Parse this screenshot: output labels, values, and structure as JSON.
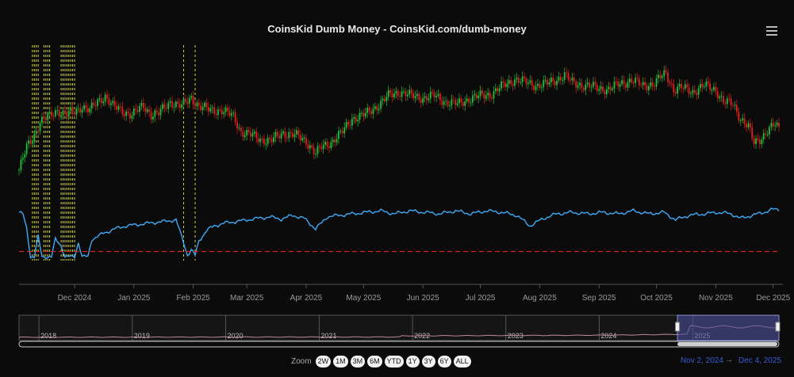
{
  "title": "CoinsKid Dumb Money - CoinsKid.com/dumb-money",
  "menu_icon": "hamburger-menu-icon",
  "zoom": {
    "label": "Zoom",
    "buttons": [
      "2W",
      "1M",
      "3M",
      "6M",
      "YTD",
      "1Y",
      "3Y",
      "6Y",
      "ALL"
    ]
  },
  "range": {
    "from": "Nov 2, 2024",
    "arrow": "→",
    "to": "Dec 4, 2025"
  },
  "colors": {
    "background": "#0b0b0b",
    "candle_up": "#22c03a",
    "candle_down": "#e0201c",
    "indicator_line": "#3fa9f5",
    "threshold_line": "#d0261d",
    "signal_lines": "#d4d43a",
    "navigator_fill": "#4a4f9a"
  },
  "chart_data": {
    "type": "line",
    "title": "CoinsKid Dumb Money - CoinsKid.com/dumb-money",
    "xlabel": "",
    "ylabel": "",
    "x_ticks": [
      "Dec 2024",
      "Jan 2025",
      "Feb 2025",
      "Mar 2025",
      "Apr 2025",
      "May 2025",
      "Jun 2025",
      "Jul 2025",
      "Aug 2025",
      "Sep 2025",
      "Oct 2025",
      "Nov 2025",
      "Dec 2025"
    ],
    "x_range": [
      "2024-11-02",
      "2025-12-04"
    ],
    "y_scale": "relative (0 = panel bottom, 1 = panel top)",
    "series": [
      {
        "kind": "candlestick-close",
        "points": [
          [
            "2024-11-02",
            0.08
          ],
          [
            "2024-11-06",
            0.3
          ],
          [
            "2024-11-10",
            0.42
          ],
          [
            "2024-11-13",
            0.55
          ],
          [
            "2024-11-18",
            0.6
          ],
          [
            "2024-11-22",
            0.66
          ],
          [
            "2024-11-26",
            0.62
          ],
          [
            "2024-12-01",
            0.64
          ],
          [
            "2024-12-05",
            0.7
          ],
          [
            "2024-12-09",
            0.66
          ],
          [
            "2024-12-13",
            0.74
          ],
          [
            "2024-12-17",
            0.8
          ],
          [
            "2024-12-21",
            0.7
          ],
          [
            "2024-12-26",
            0.65
          ],
          [
            "2024-12-31",
            0.62
          ],
          [
            "2025-01-06",
            0.7
          ],
          [
            "2025-01-10",
            0.62
          ],
          [
            "2025-01-14",
            0.63
          ],
          [
            "2025-01-20",
            0.74
          ],
          [
            "2025-01-26",
            0.7
          ],
          [
            "2025-01-31",
            0.78
          ],
          [
            "2025-02-04",
            0.7
          ],
          [
            "2025-02-10",
            0.66
          ],
          [
            "2025-02-16",
            0.66
          ],
          [
            "2025-02-22",
            0.6
          ],
          [
            "2025-02-26",
            0.45
          ],
          [
            "2025-03-03",
            0.42
          ],
          [
            "2025-03-08",
            0.38
          ],
          [
            "2025-03-13",
            0.36
          ],
          [
            "2025-03-20",
            0.44
          ],
          [
            "2025-03-26",
            0.42
          ],
          [
            "2025-04-01",
            0.36
          ],
          [
            "2025-04-06",
            0.24
          ],
          [
            "2025-04-09",
            0.3
          ],
          [
            "2025-04-14",
            0.35
          ],
          [
            "2025-04-20",
            0.45
          ],
          [
            "2025-04-25",
            0.58
          ],
          [
            "2025-05-02",
            0.62
          ],
          [
            "2025-05-08",
            0.7
          ],
          [
            "2025-05-14",
            0.8
          ],
          [
            "2025-05-20",
            0.84
          ],
          [
            "2025-05-26",
            0.8
          ],
          [
            "2025-06-01",
            0.78
          ],
          [
            "2025-06-07",
            0.8
          ],
          [
            "2025-06-13",
            0.74
          ],
          [
            "2025-06-19",
            0.72
          ],
          [
            "2025-06-25",
            0.77
          ],
          [
            "2025-07-01",
            0.8
          ],
          [
            "2025-07-07",
            0.82
          ],
          [
            "2025-07-13",
            0.9
          ],
          [
            "2025-07-19",
            0.96
          ],
          [
            "2025-07-25",
            0.93
          ],
          [
            "2025-07-31",
            0.9
          ],
          [
            "2025-08-05",
            0.92
          ],
          [
            "2025-08-10",
            0.96
          ],
          [
            "2025-08-14",
            1.0
          ],
          [
            "2025-08-18",
            0.93
          ],
          [
            "2025-08-24",
            0.9
          ],
          [
            "2025-08-31",
            0.88
          ],
          [
            "2025-09-06",
            0.86
          ],
          [
            "2025-09-12",
            0.92
          ],
          [
            "2025-09-18",
            0.95
          ],
          [
            "2025-09-24",
            0.9
          ],
          [
            "2025-09-30",
            0.92
          ],
          [
            "2025-10-03",
            0.98
          ],
          [
            "2025-10-06",
            1.02
          ],
          [
            "2025-10-10",
            0.86
          ],
          [
            "2025-10-14",
            0.88
          ],
          [
            "2025-10-20",
            0.84
          ],
          [
            "2025-10-26",
            0.9
          ],
          [
            "2025-11-01",
            0.86
          ],
          [
            "2025-11-05",
            0.74
          ],
          [
            "2025-11-10",
            0.72
          ],
          [
            "2025-11-14",
            0.58
          ],
          [
            "2025-11-18",
            0.5
          ],
          [
            "2025-11-21",
            0.34
          ],
          [
            "2025-11-24",
            0.38
          ],
          [
            "2025-11-28",
            0.46
          ],
          [
            "2025-12-02",
            0.52
          ],
          [
            "2025-12-04",
            0.48
          ]
        ]
      },
      {
        "kind": "indicator",
        "points": [
          [
            "2024-11-02",
            0.62
          ],
          [
            "2024-11-04",
            0.6
          ],
          [
            "2024-11-06",
            0.4
          ],
          [
            "2024-11-08",
            0.03
          ],
          [
            "2024-11-10",
            0.03
          ],
          [
            "2024-11-12",
            0.3
          ],
          [
            "2024-11-14",
            0.03
          ],
          [
            "2024-11-16",
            0.03
          ],
          [
            "2024-11-19",
            0.03
          ],
          [
            "2024-11-21",
            0.26
          ],
          [
            "2024-11-24",
            0.18
          ],
          [
            "2024-11-26",
            0.03
          ],
          [
            "2024-11-29",
            0.03
          ],
          [
            "2024-12-01",
            0.03
          ],
          [
            "2024-12-03",
            0.22
          ],
          [
            "2024-12-05",
            0.03
          ],
          [
            "2024-12-08",
            0.03
          ],
          [
            "2024-12-10",
            0.26
          ],
          [
            "2024-12-16",
            0.34
          ],
          [
            "2024-12-22",
            0.4
          ],
          [
            "2024-12-28",
            0.44
          ],
          [
            "2025-01-04",
            0.46
          ],
          [
            "2025-01-10",
            0.48
          ],
          [
            "2025-01-17",
            0.5
          ],
          [
            "2025-01-23",
            0.52
          ],
          [
            "2025-01-27",
            0.22
          ],
          [
            "2025-01-29",
            0.05
          ],
          [
            "2025-01-31",
            0.12
          ],
          [
            "2025-02-02",
            0.05
          ],
          [
            "2025-02-04",
            0.24
          ],
          [
            "2025-02-08",
            0.38
          ],
          [
            "2025-02-12",
            0.44
          ],
          [
            "2025-02-18",
            0.48
          ],
          [
            "2025-02-24",
            0.5
          ],
          [
            "2025-03-01",
            0.52
          ],
          [
            "2025-03-07",
            0.54
          ],
          [
            "2025-03-13",
            0.56
          ],
          [
            "2025-03-19",
            0.53
          ],
          [
            "2025-03-25",
            0.58
          ],
          [
            "2025-03-31",
            0.54
          ],
          [
            "2025-04-06",
            0.4
          ],
          [
            "2025-04-12",
            0.56
          ],
          [
            "2025-04-18",
            0.58
          ],
          [
            "2025-04-25",
            0.6
          ],
          [
            "2025-05-02",
            0.62
          ],
          [
            "2025-05-10",
            0.64
          ],
          [
            "2025-05-17",
            0.6
          ],
          [
            "2025-05-25",
            0.64
          ],
          [
            "2025-06-02",
            0.62
          ],
          [
            "2025-06-10",
            0.6
          ],
          [
            "2025-06-18",
            0.64
          ],
          [
            "2025-06-26",
            0.6
          ],
          [
            "2025-07-04",
            0.64
          ],
          [
            "2025-07-12",
            0.62
          ],
          [
            "2025-07-20",
            0.58
          ],
          [
            "2025-07-27",
            0.44
          ],
          [
            "2025-08-03",
            0.54
          ],
          [
            "2025-08-10",
            0.6
          ],
          [
            "2025-08-18",
            0.62
          ],
          [
            "2025-08-26",
            0.6
          ],
          [
            "2025-09-03",
            0.62
          ],
          [
            "2025-09-11",
            0.6
          ],
          [
            "2025-09-19",
            0.64
          ],
          [
            "2025-09-27",
            0.6
          ],
          [
            "2025-10-05",
            0.62
          ],
          [
            "2025-10-11",
            0.52
          ],
          [
            "2025-10-18",
            0.58
          ],
          [
            "2025-10-26",
            0.6
          ],
          [
            "2025-11-02",
            0.62
          ],
          [
            "2025-11-09",
            0.6
          ],
          [
            "2025-11-14",
            0.54
          ],
          [
            "2025-11-20",
            0.58
          ],
          [
            "2025-11-26",
            0.62
          ],
          [
            "2025-12-01",
            0.66
          ],
          [
            "2025-12-04",
            0.66
          ]
        ]
      }
    ],
    "threshold": {
      "y": 0.1,
      "style": "dashed"
    },
    "signal_dates": [
      "2024-11-09",
      "2024-11-10",
      "2024-11-11",
      "2024-11-12",
      "2024-11-15",
      "2024-11-16",
      "2024-11-17",
      "2024-11-18",
      "2024-11-24",
      "2024-11-25",
      "2024-11-26",
      "2024-11-27",
      "2024-11-28",
      "2024-11-29",
      "2024-11-30",
      "2024-12-01",
      "2025-01-27",
      "2025-02-02"
    ],
    "navigator": {
      "ticks": [
        "2018",
        "2019",
        "2020",
        "2021",
        "2022",
        "2023",
        "2024",
        "2025"
      ],
      "selected_range": [
        "2024-11-02",
        "2025-12-04"
      ]
    },
    "grid": false,
    "legend": "none"
  }
}
